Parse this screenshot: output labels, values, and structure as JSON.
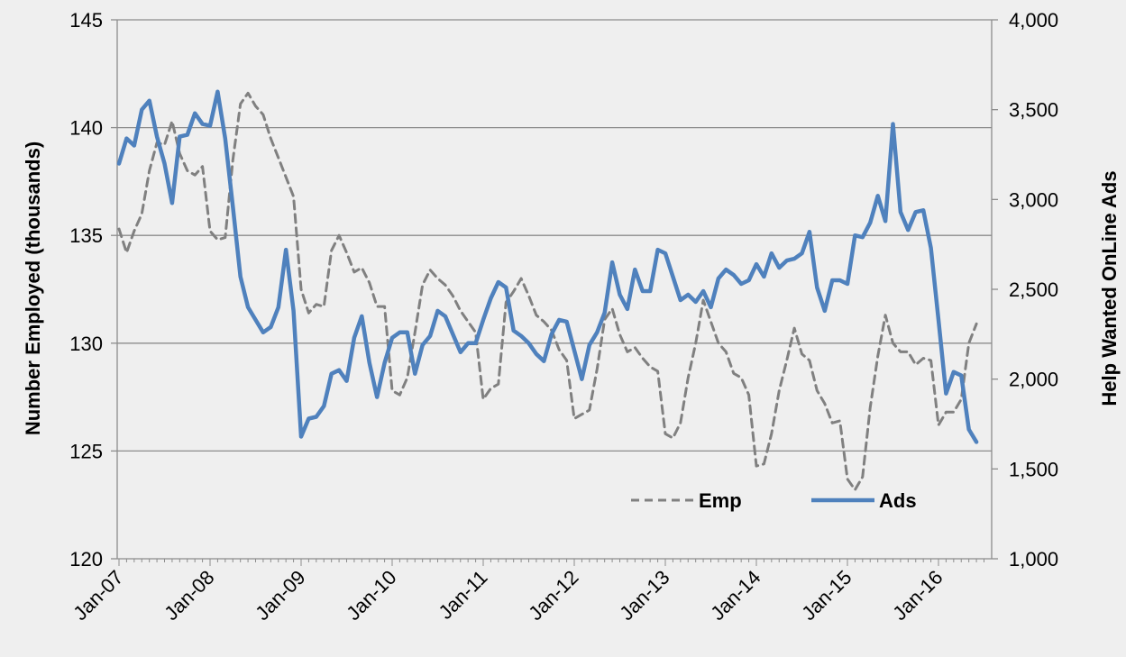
{
  "chart_data": {
    "type": "line",
    "title": "",
    "xlabel": "",
    "ylabel": "Number Employed (thousands)",
    "y2label": "Help Wanted OnLine Ads",
    "ylim": [
      120,
      145
    ],
    "y2lim": [
      1000,
      4000
    ],
    "grid": true,
    "legend_position": "bottom-right",
    "x_tick_labels": [
      "Jan-07",
      "Jan-08",
      "Jan-09",
      "Jan-10",
      "Jan-11",
      "Jan-12",
      "Jan-13",
      "Jan-14",
      "Jan-15",
      "Jan-16"
    ],
    "y_tick_labels": [
      "120",
      "125",
      "130",
      "135",
      "140",
      "145"
    ],
    "y2_tick_labels": [
      "1,000",
      "1,500",
      "2,000",
      "2,500",
      "3,000",
      "3,500",
      "4,000"
    ],
    "series": [
      {
        "name": "Emp",
        "axis": "left",
        "style": "dashed",
        "color": "#808080",
        "values": [
          135.3,
          134.2,
          135.2,
          136.0,
          138.0,
          139.3,
          139.2,
          140.3,
          138.8,
          138.0,
          137.8,
          138.2,
          135.2,
          134.8,
          134.9,
          138.5,
          141.1,
          141.6,
          141.0,
          140.6,
          139.5,
          138.6,
          137.7,
          136.8,
          132.5,
          131.4,
          131.8,
          131.7,
          134.3,
          135.0,
          134.2,
          133.3,
          133.5,
          132.8,
          131.7,
          131.7,
          127.8,
          127.6,
          128.4,
          130.5,
          132.7,
          133.4,
          133.0,
          132.7,
          132.2,
          131.5,
          131.0,
          130.5,
          127.4,
          127.9,
          128.1,
          131.9,
          132.4,
          133.0,
          132.2,
          131.3,
          131.0,
          130.6,
          129.7,
          129.2,
          126.5,
          126.7,
          126.9,
          128.8,
          131.1,
          131.6,
          130.4,
          129.6,
          129.8,
          129.3,
          128.9,
          128.7,
          125.8,
          125.6,
          126.3,
          128.4,
          130.0,
          132.0,
          131.0,
          130.0,
          129.6,
          128.6,
          128.4,
          127.6,
          124.3,
          124.4,
          125.8,
          127.8,
          129.2,
          130.7,
          129.5,
          129.2,
          127.8,
          127.2,
          126.3,
          126.4,
          123.7,
          123.2,
          123.8,
          127.0,
          129.4,
          131.3,
          130.0,
          129.6,
          129.6,
          129.0,
          129.3,
          129.2,
          126.2,
          126.8,
          126.8,
          127.4,
          130.0,
          130.9
        ]
      },
      {
        "name": "Ads",
        "axis": "right",
        "style": "solid",
        "color": "#4f81bd",
        "values": [
          3200,
          3340,
          3300,
          3500,
          3550,
          3350,
          3200,
          2980,
          3350,
          3360,
          3480,
          3420,
          3410,
          3600,
          3340,
          2960,
          2570,
          2400,
          2330,
          2260,
          2290,
          2400,
          2720,
          2380,
          1680,
          1780,
          1790,
          1850,
          2030,
          2050,
          1990,
          2230,
          2350,
          2090,
          1900,
          2090,
          2230,
          2260,
          2260,
          2030,
          2190,
          2240,
          2380,
          2350,
          2250,
          2150,
          2200,
          2200,
          2330,
          2450,
          2540,
          2510,
          2270,
          2240,
          2200,
          2140,
          2100,
          2250,
          2330,
          2320,
          2160,
          2000,
          2190,
          2260,
          2370,
          2650,
          2470,
          2390,
          2610,
          2490,
          2490,
          2720,
          2700,
          2570,
          2440,
          2470,
          2430,
          2490,
          2400,
          2560,
          2610,
          2580,
          2530,
          2550,
          2640,
          2570,
          2700,
          2620,
          2660,
          2670,
          2700,
          2820,
          2510,
          2380,
          2550,
          2550,
          2530,
          2800,
          2790,
          2870,
          3020,
          2880,
          3420,
          2930,
          2830,
          2930,
          2940,
          2730,
          2330,
          1920,
          2040,
          2020,
          1720,
          1650
        ]
      }
    ]
  }
}
